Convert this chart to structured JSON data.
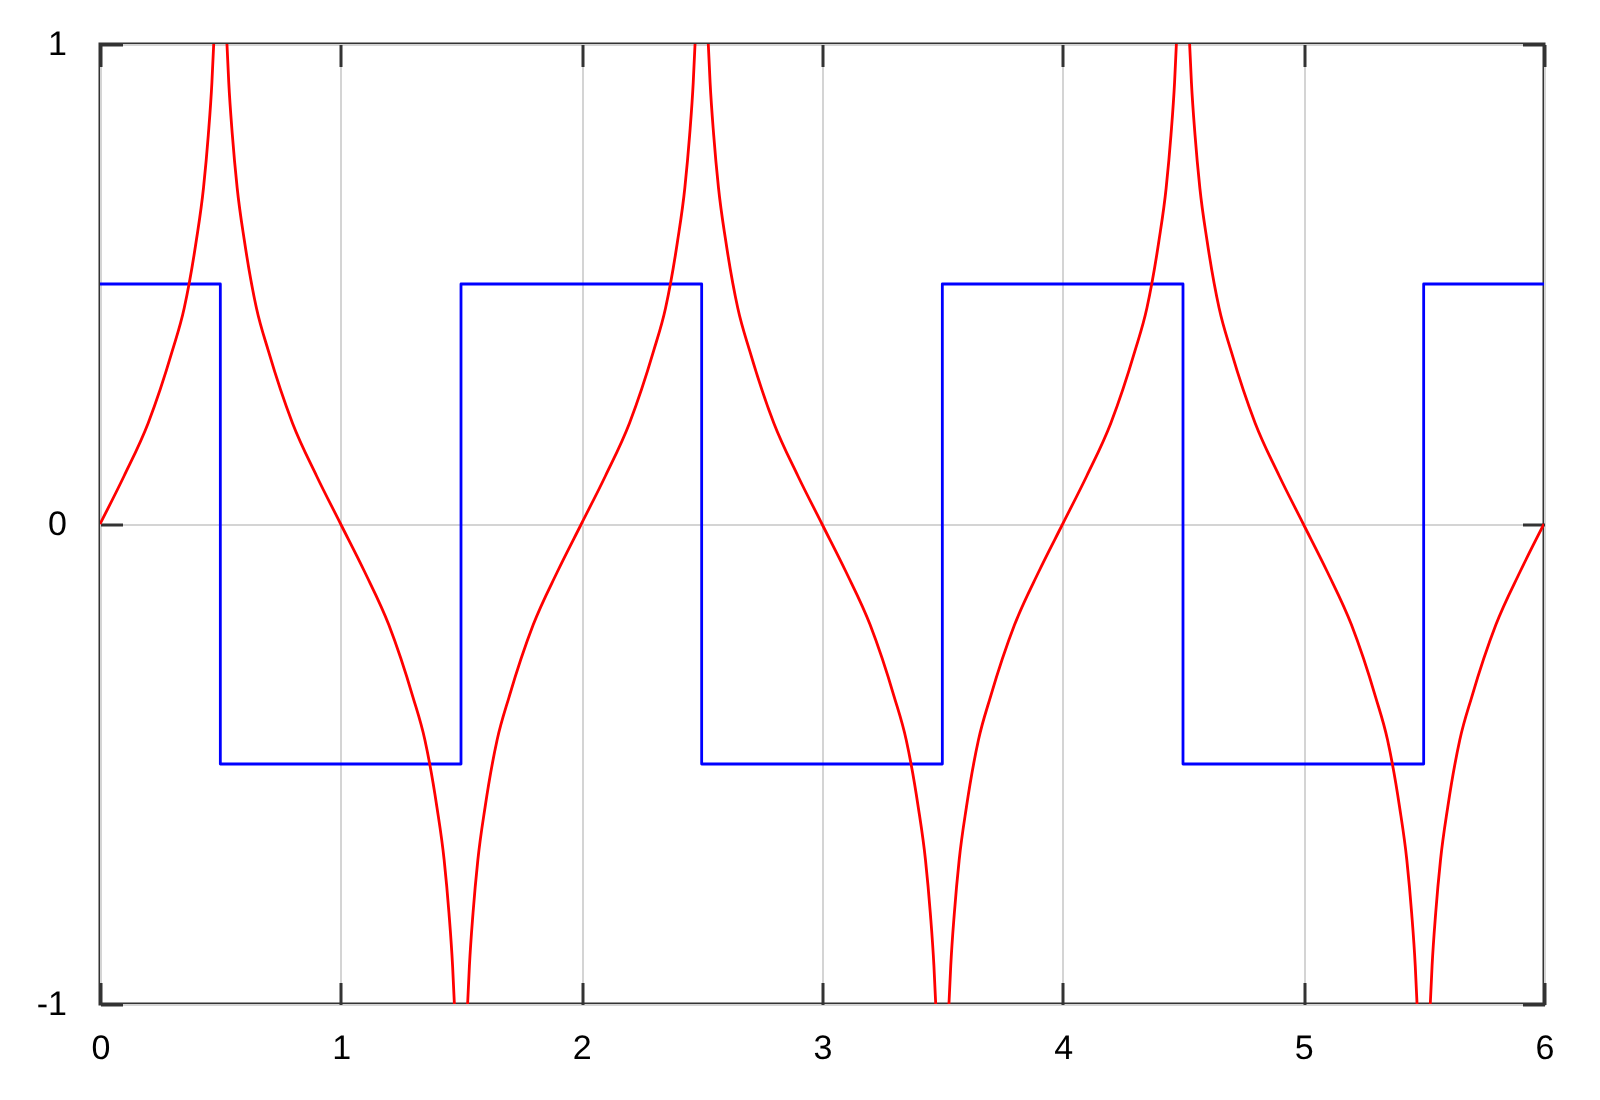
{
  "chart_data": {
    "type": "line",
    "xlim": [
      0,
      6
    ],
    "xticks": [
      0,
      1,
      2,
      3,
      4,
      5,
      6
    ],
    "ylim": [
      -1,
      1
    ],
    "yticks": [
      -1,
      0,
      1
    ],
    "grid": true,
    "series": [
      {
        "type": "step",
        "color": "#0000ff",
        "x": [
          0,
          0.5,
          1.5,
          2.5,
          3.5,
          4.5,
          5.5,
          6
        ],
        "values": [
          0.5,
          -0.5,
          0.5,
          -0.5,
          0.5,
          -0.5,
          0.5,
          0.5
        ]
      },
      {
        "type": "line",
        "color": "#ff0000",
        "x": [
          0,
          0.1,
          0.2,
          0.3,
          0.35,
          0.4,
          0.43,
          0.45,
          0.465,
          0.4725,
          0.5,
          0.5275,
          0.535,
          0.55,
          0.57,
          0.6,
          0.65,
          0.7,
          0.8,
          0.9,
          1,
          1.1,
          1.2,
          1.3,
          1.35,
          1.4,
          1.43,
          1.45,
          1.465,
          1.4725,
          1.5,
          1.5275,
          1.535,
          1.55,
          1.57,
          1.6,
          1.65,
          1.7,
          1.8,
          1.9,
          2,
          2.1,
          2.2,
          2.3,
          2.35,
          2.4,
          2.43,
          2.45,
          2.465,
          2.4725,
          2.5,
          2.5275,
          2.535,
          2.55,
          2.57,
          2.6,
          2.65,
          2.7,
          2.8,
          2.9,
          3,
          3.1,
          3.2,
          3.3,
          3.35,
          3.4,
          3.43,
          3.45,
          3.465,
          3.4725,
          3.5,
          3.5275,
          3.535,
          3.55,
          3.57,
          3.6,
          3.65,
          3.7,
          3.8,
          3.9,
          4,
          4.1,
          4.2,
          4.3,
          4.35,
          4.4,
          4.43,
          4.45,
          4.465,
          4.4725,
          4.5,
          4.5275,
          4.535,
          4.55,
          4.57,
          4.6,
          4.65,
          4.7,
          4.8,
          4.9,
          5,
          5.1,
          5.2,
          5.3,
          5.35,
          5.4,
          5.43,
          5.45,
          5.465,
          5.4725,
          5.5,
          5.5275,
          5.535,
          5.55,
          5.57,
          5.6,
          5.65,
          5.7,
          5.8,
          5.9,
          6
        ],
        "values": [
          0,
          0.1,
          0.21,
          0.36,
          0.45,
          0.59,
          0.7,
          0.81,
          0.92,
          1,
          null,
          1,
          0.92,
          0.81,
          0.7,
          0.59,
          0.45,
          0.36,
          0.21,
          0.1,
          0,
          -0.1,
          -0.21,
          -0.36,
          -0.45,
          -0.59,
          -0.7,
          -0.81,
          -0.92,
          -1,
          null,
          -1,
          -0.92,
          -0.81,
          -0.7,
          -0.59,
          -0.45,
          -0.36,
          -0.21,
          -0.1,
          0,
          0.1,
          0.21,
          0.36,
          0.45,
          0.59,
          0.7,
          0.81,
          0.92,
          1,
          null,
          1,
          0.92,
          0.81,
          0.7,
          0.59,
          0.45,
          0.36,
          0.21,
          0.1,
          0,
          -0.1,
          -0.21,
          -0.36,
          -0.45,
          -0.59,
          -0.7,
          -0.81,
          -0.92,
          -1,
          null,
          -1,
          -0.92,
          -0.81,
          -0.7,
          -0.59,
          -0.45,
          -0.36,
          -0.21,
          -0.1,
          0,
          0.1,
          0.21,
          0.36,
          0.45,
          0.59,
          0.7,
          0.81,
          0.92,
          1,
          null,
          1,
          0.92,
          0.81,
          0.7,
          0.59,
          0.45,
          0.36,
          0.21,
          0.1,
          0,
          -0.1,
          -0.21,
          -0.36,
          -0.45,
          -0.59,
          -0.7,
          -0.81,
          -0.92,
          -1,
          null,
          -1,
          -0.92,
          -0.81,
          -0.7,
          -0.59,
          -0.45,
          -0.36,
          -0.21,
          -0.1,
          0
        ]
      }
    ]
  }
}
